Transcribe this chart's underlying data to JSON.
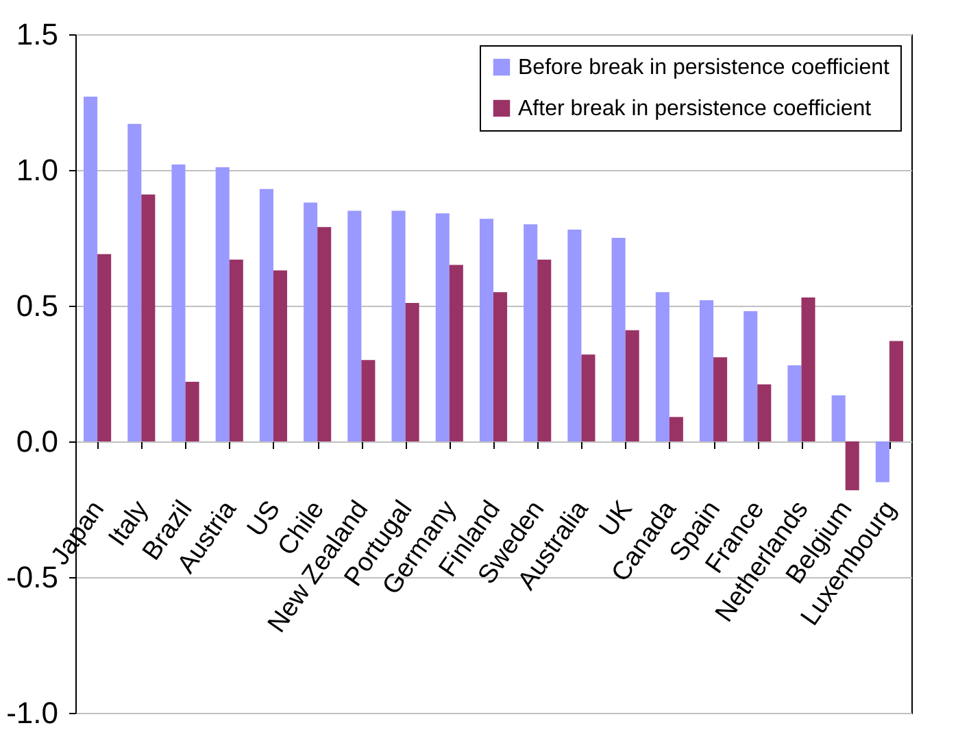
{
  "chart_data": {
    "type": "bar",
    "categories": [
      "Japan",
      "Italy",
      "Brazil",
      "Austria",
      "US",
      "Chile",
      "New Zealand",
      "Portugal",
      "Germany",
      "Finland",
      "Sweden",
      "Australia",
      "UK",
      "Canada",
      "Spain",
      "France",
      "Netherlands",
      "Belgium",
      "Luxembourg"
    ],
    "series": [
      {
        "name": "Before break in persistence coefficient",
        "color": "#9999ff",
        "values": [
          1.27,
          1.17,
          1.02,
          1.01,
          0.93,
          0.88,
          0.85,
          0.85,
          0.84,
          0.82,
          0.8,
          0.78,
          0.75,
          0.55,
          0.52,
          0.48,
          0.28,
          0.17,
          -0.15
        ]
      },
      {
        "name": "After break in persistence coefficient",
        "color": "#993366",
        "values": [
          0.69,
          0.91,
          0.22,
          0.67,
          0.63,
          0.79,
          0.3,
          0.51,
          0.65,
          0.55,
          0.67,
          0.32,
          0.41,
          0.09,
          0.31,
          0.21,
          0.53,
          -0.18,
          0.37
        ]
      }
    ],
    "ylim": [
      -1.0,
      1.5
    ],
    "yticks": [
      {
        "value": -1,
        "label": "-1.0"
      },
      {
        "value": -0.5,
        "label": "-0.5"
      },
      {
        "value": 0,
        "label": "0.0"
      },
      {
        "value": 0.5,
        "label": "0.5"
      },
      {
        "value": 1,
        "label": "1.0"
      },
      {
        "value": 1.5,
        "label": "1.5"
      }
    ],
    "grid": "y",
    "legend": "top right"
  }
}
